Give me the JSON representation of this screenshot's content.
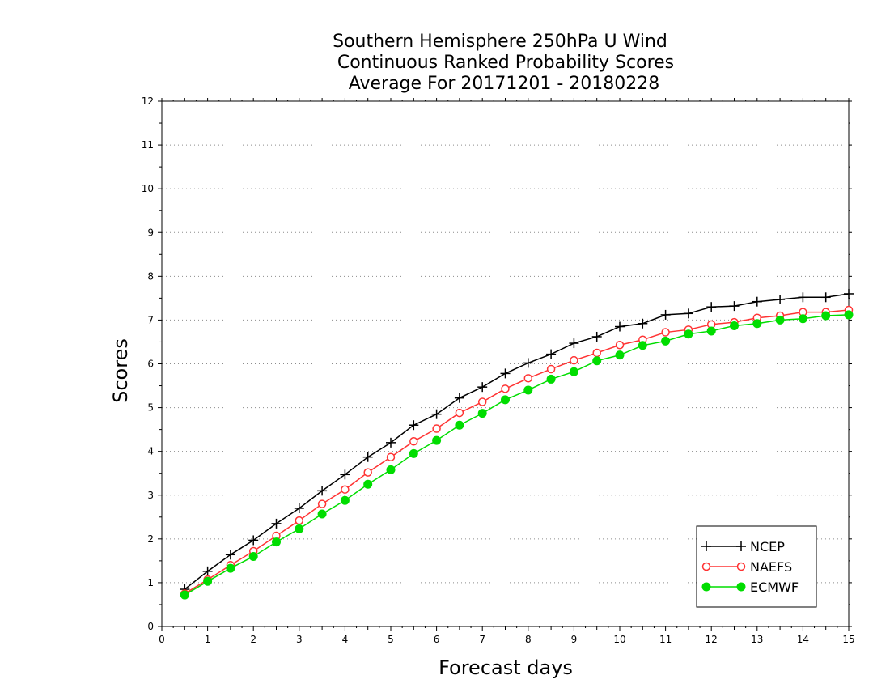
{
  "chart_data": {
    "type": "line",
    "title_lines": [
      "Southern Hemisphere 250hPa U Wind",
      "Continuous Ranked Probability Scores",
      "Average For 20171201 - 20180228"
    ],
    "xlabel": "Forecast days",
    "ylabel": "Scores",
    "xlim": [
      0,
      15
    ],
    "ylim": [
      0,
      12
    ],
    "x_ticks": [
      0,
      1,
      2,
      3,
      4,
      5,
      6,
      7,
      8,
      9,
      10,
      11,
      12,
      13,
      14,
      15
    ],
    "y_ticks": [
      0,
      1,
      2,
      3,
      4,
      5,
      6,
      7,
      8,
      9,
      10,
      11,
      12
    ],
    "grid": "horizontal-dotted",
    "legend_position": "bottom-right",
    "x": [
      0.5,
      1,
      1.5,
      2,
      2.5,
      3,
      3.5,
      4,
      4.5,
      5,
      5.5,
      6,
      6.5,
      7,
      7.5,
      8,
      8.5,
      9,
      9.5,
      10,
      10.5,
      11,
      11.5,
      12,
      12.5,
      13,
      13.5,
      14,
      14.5,
      15
    ],
    "series": [
      {
        "name": "NCEP",
        "color": "#000000",
        "marker": "plus",
        "values": [
          0.85,
          1.26,
          1.64,
          1.97,
          2.35,
          2.7,
          3.1,
          3.47,
          3.87,
          4.2,
          4.6,
          4.85,
          5.22,
          5.47,
          5.78,
          6.02,
          6.22,
          6.47,
          6.62,
          6.85,
          6.92,
          7.12,
          7.15,
          7.3,
          7.32,
          7.42,
          7.47,
          7.52,
          7.52,
          7.6
        ]
      },
      {
        "name": "NAEFS",
        "color": "#ff3333",
        "marker": "open-circle",
        "values": [
          0.75,
          1.07,
          1.4,
          1.72,
          2.07,
          2.42,
          2.8,
          3.13,
          3.52,
          3.87,
          4.23,
          4.52,
          4.88,
          5.13,
          5.43,
          5.67,
          5.88,
          6.08,
          6.25,
          6.43,
          6.55,
          6.72,
          6.78,
          6.9,
          6.95,
          7.05,
          7.1,
          7.18,
          7.18,
          7.23
        ]
      },
      {
        "name": "ECMWF",
        "color": "#00dd00",
        "marker": "filled-circle",
        "values": [
          0.72,
          1.03,
          1.33,
          1.6,
          1.93,
          2.23,
          2.57,
          2.88,
          3.25,
          3.58,
          3.95,
          4.25,
          4.6,
          4.87,
          5.18,
          5.4,
          5.65,
          5.82,
          6.07,
          6.2,
          6.42,
          6.52,
          6.68,
          6.75,
          6.87,
          6.92,
          7.0,
          7.03,
          7.1,
          7.12
        ]
      }
    ]
  }
}
